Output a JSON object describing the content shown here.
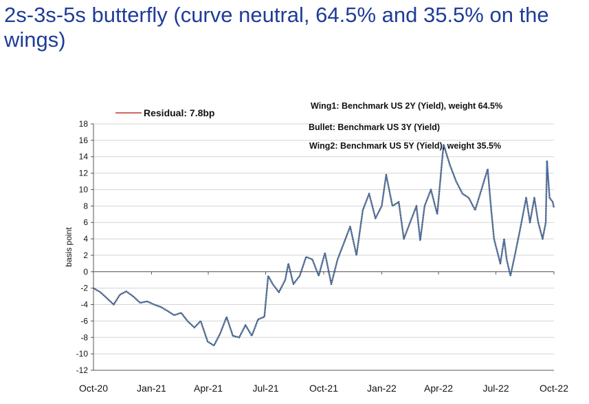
{
  "title": "2s-3s-5s butterfly (curve neutral, 64.5% and 35.5% on the wings)",
  "chart_data": {
    "type": "line",
    "ylabel": "basis point",
    "xlabel": "",
    "ylim": [
      -12,
      18
    ],
    "yticks": [
      -12,
      -10,
      -8,
      -6,
      -4,
      -2,
      0,
      2,
      4,
      6,
      8,
      10,
      12,
      14,
      16,
      18
    ],
    "xlim": [
      "2020-10-01",
      "2022-10-01"
    ],
    "xticks": [
      {
        "date": "2020-10-01",
        "label": "Oct-20"
      },
      {
        "date": "2021-01-01",
        "label": "Jan-21"
      },
      {
        "date": "2021-04-01",
        "label": "Apr-21"
      },
      {
        "date": "2021-07-01",
        "label": "Jul-21"
      },
      {
        "date": "2021-10-01",
        "label": "Oct-21"
      },
      {
        "date": "2022-01-01",
        "label": "Jan-22"
      },
      {
        "date": "2022-04-01",
        "label": "Apr-22"
      },
      {
        "date": "2022-07-01",
        "label": "Jul-22"
      },
      {
        "date": "2022-10-01",
        "label": "Oct-22"
      }
    ],
    "legend": {
      "label": "Residual: 7.8bp",
      "color": "#c0392b",
      "placement": "top-left"
    },
    "annotations": [
      "Wing1: Benchmark US 2Y (Yield), weight 64.5%",
      "Bullet: Benchmark US 3Y (Yield)",
      "Wing2: Benchmark US 5Y (Yield), weight 35.5%"
    ],
    "series": [
      {
        "color": "#4a74b0",
        "points": [
          [
            "2020-10-01",
            -2.0
          ],
          [
            "2020-10-12",
            -2.5
          ],
          [
            "2020-10-22",
            -3.2
          ],
          [
            "2020-11-02",
            -4.0
          ],
          [
            "2020-11-12",
            -2.8
          ],
          [
            "2020-11-22",
            -2.4
          ],
          [
            "2020-12-03",
            -3.0
          ],
          [
            "2020-12-14",
            -3.8
          ],
          [
            "2020-12-25",
            -3.6
          ],
          [
            "2021-01-05",
            -4.0
          ],
          [
            "2021-01-16",
            -4.3
          ],
          [
            "2021-01-27",
            -4.8
          ],
          [
            "2021-02-06",
            -5.3
          ],
          [
            "2021-02-17",
            -5.0
          ],
          [
            "2021-02-27",
            -6.0
          ],
          [
            "2021-03-10",
            -6.8
          ],
          [
            "2021-03-20",
            -6.0
          ],
          [
            "2021-03-31",
            -8.5
          ],
          [
            "2021-04-10",
            -9.0
          ],
          [
            "2021-04-20",
            -7.5
          ],
          [
            "2021-04-30",
            -5.5
          ],
          [
            "2021-05-10",
            -7.8
          ],
          [
            "2021-05-20",
            -8.0
          ],
          [
            "2021-05-30",
            -6.5
          ],
          [
            "2021-06-09",
            -7.8
          ],
          [
            "2021-06-19",
            -5.8
          ],
          [
            "2021-06-29",
            -5.5
          ],
          [
            "2021-07-05",
            -0.5
          ],
          [
            "2021-07-12",
            -1.5
          ],
          [
            "2021-07-22",
            -2.5
          ],
          [
            "2021-08-01",
            -1.0
          ],
          [
            "2021-08-06",
            1.0
          ],
          [
            "2021-08-14",
            -1.5
          ],
          [
            "2021-08-24",
            -0.5
          ],
          [
            "2021-09-03",
            1.8
          ],
          [
            "2021-09-13",
            1.5
          ],
          [
            "2021-09-23",
            -0.5
          ],
          [
            "2021-10-03",
            2.3
          ],
          [
            "2021-10-13",
            -1.5
          ],
          [
            "2021-10-23",
            1.5
          ],
          [
            "2021-11-02",
            3.5
          ],
          [
            "2021-11-12",
            5.5
          ],
          [
            "2021-11-22",
            2.0
          ],
          [
            "2021-12-02",
            7.5
          ],
          [
            "2021-12-12",
            9.5
          ],
          [
            "2021-12-22",
            6.5
          ],
          [
            "2022-01-01",
            8.0
          ],
          [
            "2022-01-08",
            11.8
          ],
          [
            "2022-01-18",
            8.0
          ],
          [
            "2022-01-28",
            8.5
          ],
          [
            "2022-02-05",
            4.0
          ],
          [
            "2022-02-15",
            6.0
          ],
          [
            "2022-02-25",
            8.0
          ],
          [
            "2022-03-03",
            3.8
          ],
          [
            "2022-03-10",
            8.0
          ],
          [
            "2022-03-20",
            10.0
          ],
          [
            "2022-03-30",
            7.0
          ],
          [
            "2022-04-09",
            15.5
          ],
          [
            "2022-04-19",
            13.0
          ],
          [
            "2022-04-29",
            11.0
          ],
          [
            "2022-05-09",
            9.5
          ],
          [
            "2022-05-19",
            9.0
          ],
          [
            "2022-05-29",
            7.5
          ],
          [
            "2022-06-08",
            10.0
          ],
          [
            "2022-06-18",
            12.5
          ],
          [
            "2022-06-23",
            8.0
          ],
          [
            "2022-06-28",
            4.0
          ],
          [
            "2022-07-08",
            1.0
          ],
          [
            "2022-07-14",
            4.0
          ],
          [
            "2022-07-18",
            1.5
          ],
          [
            "2022-07-24",
            -0.5
          ],
          [
            "2022-07-31",
            2.0
          ],
          [
            "2022-08-08",
            5.0
          ],
          [
            "2022-08-18",
            9.0
          ],
          [
            "2022-08-24",
            6.0
          ],
          [
            "2022-08-31",
            9.0
          ],
          [
            "2022-09-06",
            6.0
          ],
          [
            "2022-09-13",
            4.0
          ],
          [
            "2022-09-18",
            6.0
          ],
          [
            "2022-09-20",
            13.5
          ],
          [
            "2022-09-24",
            9.0
          ],
          [
            "2022-09-29",
            8.5
          ],
          [
            "2022-10-01",
            7.8
          ]
        ]
      }
    ]
  }
}
